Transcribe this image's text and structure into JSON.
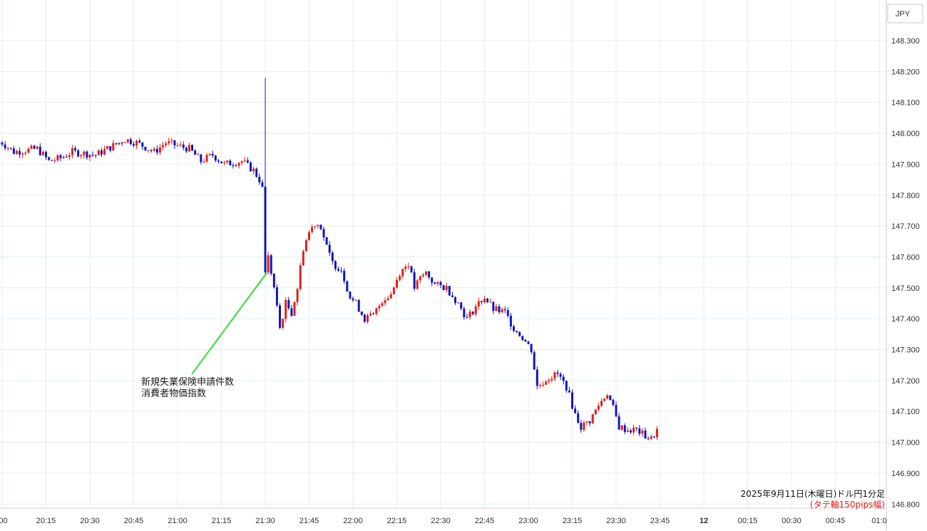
{
  "chart_data": {
    "type": "candlestick",
    "currency_label": "JPY",
    "ylim": [
      146.78,
      148.34
    ],
    "yticks": [
      "148.300",
      "148.200",
      "148.100",
      "148.000",
      "147.900",
      "147.800",
      "147.700",
      "147.600",
      "147.500",
      "147.400",
      "147.300",
      "147.200",
      "147.100",
      "147.000",
      "146.900",
      "146.800"
    ],
    "x_range_minutes": [
      -1,
      224
    ],
    "xticks": [
      {
        "label": ":00",
        "m": 0
      },
      {
        "label": "20:15",
        "m": 15
      },
      {
        "label": "20:30",
        "m": 30
      },
      {
        "label": "20:45",
        "m": 45
      },
      {
        "label": "21:00",
        "m": 60
      },
      {
        "label": "21:15",
        "m": 75
      },
      {
        "label": "21:30",
        "m": 90
      },
      {
        "label": "21:45",
        "m": 105
      },
      {
        "label": "22:00",
        "m": 120
      },
      {
        "label": "22:15",
        "m": 135
      },
      {
        "label": "22:30",
        "m": 150
      },
      {
        "label": "22:45",
        "m": 165
      },
      {
        "label": "23:00",
        "m": 180
      },
      {
        "label": "23:15",
        "m": 195
      },
      {
        "label": "23:30",
        "m": 210
      },
      {
        "label": "23:45",
        "m": 225
      },
      {
        "label": "12",
        "m": 240
      },
      {
        "label": "00:15",
        "m": 255
      },
      {
        "label": "00:30",
        "m": 270
      },
      {
        "label": "00:45",
        "m": 285
      },
      {
        "label": "01:0",
        "m": 300
      }
    ],
    "waypoints": [
      [
        0,
        147.97
      ],
      [
        4,
        147.94
      ],
      [
        12,
        147.95
      ],
      [
        16,
        147.91
      ],
      [
        20,
        147.92
      ],
      [
        24,
        147.94
      ],
      [
        32,
        147.93
      ],
      [
        38,
        147.96
      ],
      [
        42,
        147.98
      ],
      [
        46,
        147.97
      ],
      [
        52,
        147.94
      ],
      [
        56,
        147.97
      ],
      [
        60,
        147.96
      ],
      [
        64,
        147.95
      ],
      [
        68,
        147.91
      ],
      [
        72,
        147.93
      ],
      [
        76,
        147.9
      ],
      [
        82,
        147.91
      ],
      [
        86,
        147.88
      ],
      [
        88,
        147.85
      ],
      [
        89,
        147.82
      ],
      [
        90,
        147.55
      ],
      [
        91,
        147.6
      ],
      [
        93,
        147.5
      ],
      [
        95,
        147.37
      ],
      [
        97,
        147.45
      ],
      [
        99,
        147.42
      ],
      [
        101,
        147.5
      ],
      [
        103,
        147.63
      ],
      [
        105,
        147.68
      ],
      [
        107,
        147.71
      ],
      [
        109,
        147.7
      ],
      [
        111,
        147.63
      ],
      [
        113,
        147.58
      ],
      [
        116,
        147.56
      ],
      [
        119,
        147.47
      ],
      [
        121,
        147.45
      ],
      [
        124,
        147.4
      ],
      [
        127,
        147.41
      ],
      [
        130,
        147.46
      ],
      [
        133,
        147.48
      ],
      [
        136,
        147.55
      ],
      [
        139,
        147.58
      ],
      [
        141,
        147.5
      ],
      [
        143,
        147.53
      ],
      [
        145,
        147.55
      ],
      [
        148,
        147.51
      ],
      [
        152,
        147.5
      ],
      [
        156,
        147.45
      ],
      [
        159,
        147.4
      ],
      [
        162,
        147.44
      ],
      [
        165,
        147.47
      ],
      [
        168,
        147.43
      ],
      [
        172,
        147.42
      ],
      [
        175,
        147.37
      ],
      [
        178,
        147.34
      ],
      [
        181,
        147.3
      ],
      [
        183,
        147.18
      ],
      [
        187,
        147.21
      ],
      [
        190,
        147.22
      ],
      [
        193,
        147.18
      ],
      [
        196,
        147.09
      ],
      [
        198,
        147.05
      ],
      [
        201,
        147.07
      ],
      [
        204,
        147.12
      ],
      [
        207,
        147.16
      ],
      [
        209,
        147.11
      ],
      [
        211,
        147.05
      ],
      [
        214,
        147.04
      ],
      [
        217,
        147.04
      ],
      [
        220,
        147.02
      ],
      [
        222,
        147.01
      ],
      [
        224,
        147.04
      ]
    ],
    "annotation": {
      "lines": [
        "新規失業保険申請件数",
        "消費者物価指数"
      ],
      "color": "#33dd33"
    },
    "info": {
      "title": "2025年9月11日(木曜日)ドル円1分足",
      "subtitle": "(タテ軸150pips幅)"
    },
    "colors": {
      "up": "#e0201c",
      "down": "#1414b8",
      "grid": "#e3edf5",
      "subtitle": "#e0201c"
    }
  }
}
